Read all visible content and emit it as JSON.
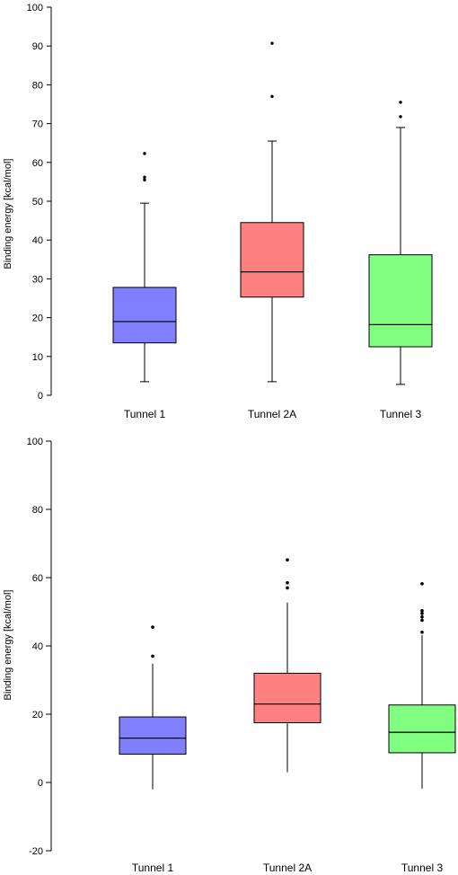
{
  "chart_data": [
    {
      "type": "box",
      "title": "",
      "xlabel": "",
      "ylabel": "Binding energy [kcal/mol]",
      "ylim": [
        0,
        100
      ],
      "yticks": [
        0,
        10,
        20,
        30,
        40,
        50,
        60,
        70,
        80,
        90,
        100
      ],
      "categories": [
        "Tunnel 1",
        "Tunnel 2A",
        "Tunnel 3"
      ],
      "colors": [
        "#8080ff",
        "#ff8080",
        "#80ff80"
      ],
      "boxes": [
        {
          "min": 3.5,
          "q1": 13.5,
          "median": 19,
          "q3": 27.8,
          "max": 49.5,
          "outliers": [
            55.5,
            56.2,
            62.3
          ]
        },
        {
          "min": 3.5,
          "q1": 25.3,
          "median": 31.8,
          "q3": 44.5,
          "max": 65.5,
          "outliers": [
            77,
            90.7
          ]
        },
        {
          "min": 2.8,
          "q1": 12.5,
          "median": 18.2,
          "q3": 36.2,
          "max": 69,
          "outliers": [
            71.8,
            75.5
          ]
        }
      ]
    },
    {
      "type": "box",
      "title": "",
      "xlabel": "",
      "ylabel": "Binding energy [kcal/mol]",
      "ylim": [
        -20,
        100
      ],
      "yticks": [
        -20,
        0,
        20,
        40,
        60,
        80,
        100
      ],
      "categories": [
        "Tunnel 1",
        "Tunnel 2A",
        "Tunnel 3"
      ],
      "colors": [
        "#8080ff",
        "#ff8080",
        "#80ff80"
      ],
      "boxes": [
        {
          "min": -2,
          "q1": 8.3,
          "median": 13,
          "q3": 19.2,
          "max": 34.8,
          "outliers": [
            37,
            45.5
          ]
        },
        {
          "min": 3,
          "q1": 17.5,
          "median": 23,
          "q3": 32,
          "max": 52.7,
          "outliers": [
            57,
            58.5,
            65.2
          ]
        },
        {
          "min": -1.8,
          "q1": 8.7,
          "median": 14.7,
          "q3": 22.7,
          "max": 43.2,
          "outliers": [
            44,
            47.5,
            48.5,
            49.5,
            50.3,
            58.2
          ]
        }
      ]
    }
  ]
}
